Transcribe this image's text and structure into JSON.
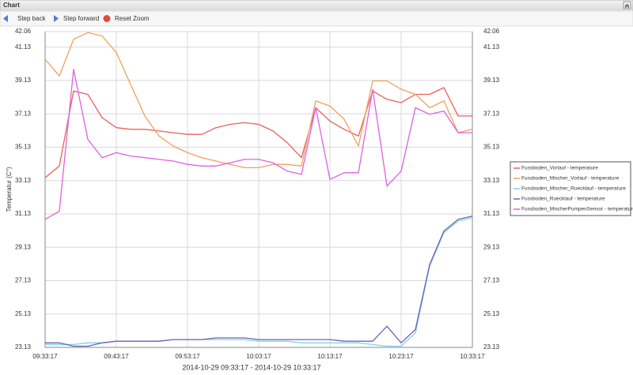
{
  "window": {
    "title": "Chart"
  },
  "toolbar": [
    "Step back",
    "Step forward",
    "Reset Zoom"
  ],
  "chart_data": {
    "type": "line",
    "y_label": "Temperatur (C°)",
    "x_label": "2014-10-29 09:33:17 - 2014-10-29 10:33:17",
    "x": [
      "09:33:17",
      "09:35:17",
      "09:37:17",
      "09:39:17",
      "09:41:17",
      "09:43:17",
      "09:45:17",
      "09:47:17",
      "09:49:17",
      "09:51:17",
      "09:53:17",
      "09:55:17",
      "09:57:17",
      "09:59:17",
      "10:01:17",
      "10:03:17",
      "10:05:17",
      "10:07:17",
      "10:09:17",
      "10:11:17",
      "10:13:17",
      "10:15:17",
      "10:17:17",
      "10:19:17",
      "10:21:17",
      "10:23:17",
      "10:25:17",
      "10:27:17",
      "10:29:17",
      "10:31:17",
      "10:33:17"
    ],
    "xlim": [
      "09:33:17",
      "10:33:17"
    ],
    "xticks": [
      "09:33:17",
      "09:43:17",
      "09:53:17",
      "10:03:17",
      "10:13:17",
      "10:23:17",
      "10:33:17"
    ],
    "ylim": [
      23.13,
      42.06
    ],
    "yticks": [
      23.13,
      25.13,
      27.13,
      29.13,
      31.13,
      33.13,
      35.13,
      37.13,
      39.13,
      41.13,
      42.06
    ],
    "grid": true,
    "legend": "right",
    "series": [
      {
        "name": "Fussboden_Vorlauf - temperature",
        "color": "#e8625a",
        "values": [
          33.3,
          34.0,
          38.5,
          38.3,
          36.9,
          36.3,
          36.2,
          36.2,
          36.1,
          36.0,
          35.9,
          35.9,
          36.3,
          36.5,
          36.6,
          36.5,
          36.1,
          35.4,
          34.5,
          37.5,
          36.7,
          36.2,
          35.8,
          38.5,
          38.0,
          37.8,
          38.3,
          38.3,
          38.7,
          37.0,
          37.0
        ]
      },
      {
        "name": "Fussboden_Mischer_Vorlauf - temperature",
        "color": "#f2a05a",
        "values": [
          40.4,
          39.4,
          41.6,
          42.0,
          41.8,
          40.8,
          38.9,
          37.0,
          35.8,
          35.2,
          34.8,
          34.5,
          34.3,
          34.1,
          33.9,
          33.9,
          34.1,
          34.1,
          34.0,
          37.9,
          37.6,
          36.8,
          35.2,
          39.1,
          39.1,
          38.6,
          38.3,
          37.5,
          37.9,
          36.0,
          36.2
        ]
      },
      {
        "name": "Fussboden_Mischer_Ruecklauf - temperature",
        "color": "#7fd3e8",
        "values": [
          23.3,
          23.3,
          23.3,
          23.4,
          23.4,
          23.5,
          23.5,
          23.5,
          23.5,
          23.6,
          23.6,
          23.6,
          23.6,
          23.6,
          23.6,
          23.5,
          23.5,
          23.5,
          23.4,
          23.4,
          23.4,
          23.4,
          23.4,
          23.3,
          23.2,
          23.2,
          24.0,
          28.0,
          30.0,
          30.7,
          30.9
        ]
      },
      {
        "name": "Fussboden_Ruecklauf - temperature",
        "color": "#7060b0",
        "values": [
          23.4,
          23.4,
          23.2,
          23.2,
          23.4,
          23.5,
          23.5,
          23.5,
          23.5,
          23.6,
          23.6,
          23.6,
          23.7,
          23.7,
          23.7,
          23.6,
          23.6,
          23.6,
          23.6,
          23.6,
          23.6,
          23.5,
          23.5,
          23.5,
          24.4,
          23.4,
          24.2,
          28.1,
          30.1,
          30.8,
          31.0
        ]
      },
      {
        "name": "Fussboden_MischerPumpenSensor - temperature",
        "color": "#e060e0",
        "values": [
          30.8,
          31.3,
          39.8,
          35.6,
          34.5,
          34.8,
          34.6,
          34.5,
          34.4,
          34.3,
          34.1,
          34.0,
          34.0,
          34.2,
          34.4,
          34.4,
          34.2,
          33.7,
          33.5,
          37.5,
          33.2,
          33.6,
          33.6,
          38.6,
          32.8,
          33.7,
          37.5,
          37.1,
          37.3,
          36.0,
          36.0
        ]
      }
    ]
  }
}
